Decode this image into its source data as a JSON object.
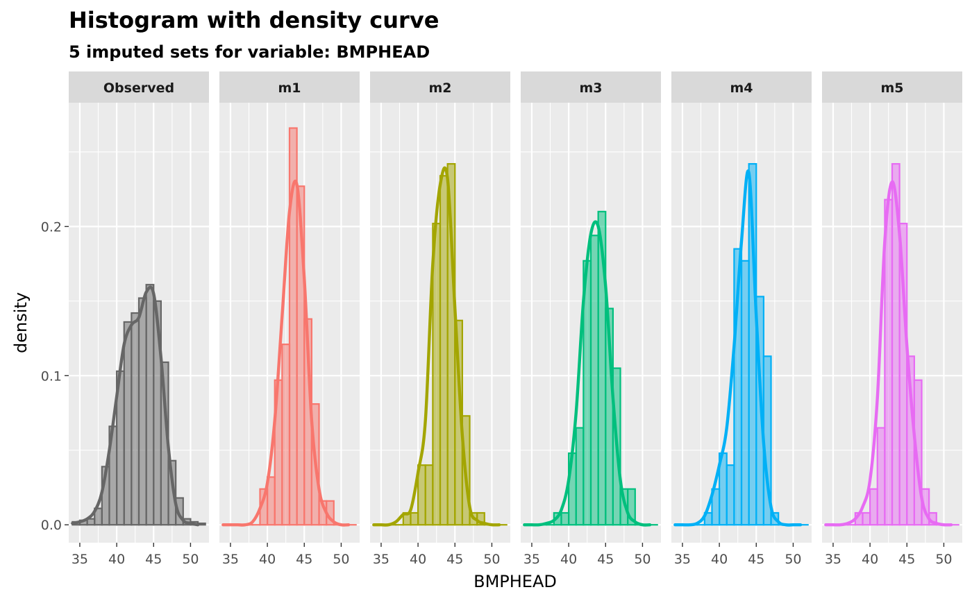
{
  "chart_data": {
    "type": "bar",
    "title": "Histogram with density curve",
    "subtitle": "5  imputed sets for variable:  BMPHEAD",
    "xlabel": "BMPHEAD",
    "ylabel": "density",
    "x_ticks": [
      "35",
      "40",
      "45",
      "50"
    ],
    "y_ticks": [
      "0.0",
      "0.1",
      "0.2"
    ],
    "xlim": [
      33.5,
      52.5
    ],
    "ylim": [
      -0.012,
      0.283
    ],
    "grid": true,
    "bin_width": 1,
    "panels": [
      {
        "name": "Observed",
        "color": "#666666",
        "bin_starts": [
          34,
          35,
          36,
          37,
          38,
          39,
          40,
          41,
          42,
          43,
          44,
          45,
          46,
          47,
          48,
          49,
          50,
          51
        ],
        "values": [
          0.002,
          0.003,
          0.004,
          0.011,
          0.039,
          0.066,
          0.103,
          0.136,
          0.142,
          0.152,
          0.161,
          0.15,
          0.109,
          0.043,
          0.018,
          0.004,
          0.002,
          0.001
        ],
        "density": {
          "x": [
            34,
            35,
            36,
            37,
            38,
            39,
            40,
            41,
            42,
            43,
            44,
            45,
            46,
            47,
            48,
            49,
            50,
            51
          ],
          "y": [
            0.001,
            0.002,
            0.004,
            0.009,
            0.022,
            0.05,
            0.086,
            0.121,
            0.134,
            0.139,
            0.156,
            0.155,
            0.112,
            0.052,
            0.014,
            0.003,
            0.001,
            0.0
          ]
        }
      },
      {
        "name": "m1",
        "color": "#F8766D",
        "bin_starts": [
          34,
          35,
          36,
          37,
          38,
          39,
          40,
          41,
          42,
          43,
          44,
          45,
          46,
          47,
          48,
          49,
          50,
          51
        ],
        "values": [
          0.0,
          0.0,
          0.0,
          0.0,
          0.0,
          0.024,
          0.032,
          0.097,
          0.121,
          0.266,
          0.227,
          0.138,
          0.081,
          0.016,
          0.016,
          0.0,
          0.0,
          0.0
        ],
        "density": {
          "x": [
            34,
            35,
            36,
            37,
            38,
            39,
            40,
            41,
            42,
            43,
            44,
            45,
            46,
            47,
            48,
            49,
            50,
            51
          ],
          "y": [
            0.0,
            0.0,
            0.0,
            0.0,
            0.002,
            0.011,
            0.028,
            0.07,
            0.14,
            0.21,
            0.228,
            0.165,
            0.07,
            0.024,
            0.008,
            0.002,
            0.0,
            0.0
          ]
        }
      },
      {
        "name": "m2",
        "color": "#A3A500",
        "bin_starts": [
          34,
          35,
          36,
          37,
          38,
          39,
          40,
          41,
          42,
          43,
          44,
          45,
          46,
          47,
          48,
          49,
          50,
          51
        ],
        "values": [
          0.0,
          0.0,
          0.0,
          0.0,
          0.008,
          0.008,
          0.04,
          0.04,
          0.202,
          0.234,
          0.242,
          0.137,
          0.073,
          0.008,
          0.008,
          0.0,
          0.0,
          0.0
        ],
        "density": {
          "x": [
            34,
            35,
            36,
            37,
            38,
            39,
            40,
            41,
            42,
            43,
            44,
            45,
            46,
            47,
            48,
            49,
            50,
            51
          ],
          "y": [
            0.0,
            0.0,
            0.0,
            0.002,
            0.007,
            0.01,
            0.035,
            0.07,
            0.175,
            0.228,
            0.232,
            0.145,
            0.06,
            0.012,
            0.003,
            0.001,
            0.0,
            0.0
          ]
        }
      },
      {
        "name": "m3",
        "color": "#00BF7D",
        "bin_starts": [
          34,
          35,
          36,
          37,
          38,
          39,
          40,
          41,
          42,
          43,
          44,
          45,
          46,
          47,
          48,
          49,
          50,
          51
        ],
        "values": [
          0.0,
          0.0,
          0.0,
          0.0,
          0.008,
          0.008,
          0.048,
          0.065,
          0.177,
          0.194,
          0.21,
          0.145,
          0.105,
          0.024,
          0.024,
          0.0,
          0.0,
          0.0
        ],
        "density": {
          "x": [
            34,
            35,
            36,
            37,
            38,
            39,
            40,
            41,
            42,
            43,
            44,
            45,
            46,
            47,
            48,
            49,
            50,
            51
          ],
          "y": [
            0.0,
            0.0,
            0.0,
            0.001,
            0.003,
            0.01,
            0.03,
            0.075,
            0.15,
            0.195,
            0.2,
            0.16,
            0.085,
            0.03,
            0.008,
            0.002,
            0.0,
            0.0
          ]
        }
      },
      {
        "name": "m4",
        "color": "#00B0F6",
        "bin_starts": [
          34,
          35,
          36,
          37,
          38,
          39,
          40,
          41,
          42,
          43,
          44,
          45,
          46,
          47,
          48,
          49,
          50,
          51
        ],
        "values": [
          0.0,
          0.0,
          0.0,
          0.0,
          0.008,
          0.024,
          0.048,
          0.04,
          0.185,
          0.177,
          0.242,
          0.153,
          0.113,
          0.008,
          0.0,
          0.0,
          0.0,
          0.0
        ],
        "density": {
          "x": [
            34,
            35,
            36,
            37,
            38,
            39,
            40,
            41,
            42,
            43,
            44,
            45,
            46,
            47,
            48,
            49,
            50,
            51
          ],
          "y": [
            0.0,
            0.0,
            0.0,
            0.001,
            0.006,
            0.02,
            0.04,
            0.065,
            0.12,
            0.19,
            0.236,
            0.14,
            0.055,
            0.012,
            0.002,
            0.0,
            0.0,
            0.0
          ]
        }
      },
      {
        "name": "m5",
        "color": "#E76BF3",
        "bin_starts": [
          34,
          35,
          36,
          37,
          38,
          39,
          40,
          41,
          42,
          43,
          44,
          45,
          46,
          47,
          48,
          49,
          50,
          51
        ],
        "values": [
          0.0,
          0.0,
          0.0,
          0.0,
          0.008,
          0.008,
          0.024,
          0.065,
          0.218,
          0.242,
          0.202,
          0.113,
          0.097,
          0.024,
          0.008,
          0.0,
          0.0,
          0.0
        ],
        "density": {
          "x": [
            34,
            35,
            36,
            37,
            38,
            39,
            40,
            41,
            42,
            43,
            44,
            45,
            46,
            47,
            48,
            49,
            50,
            51
          ],
          "y": [
            0.0,
            0.0,
            0.0,
            0.001,
            0.004,
            0.012,
            0.03,
            0.085,
            0.19,
            0.23,
            0.195,
            0.12,
            0.06,
            0.018,
            0.004,
            0.001,
            0.0,
            0.0
          ]
        }
      }
    ]
  }
}
